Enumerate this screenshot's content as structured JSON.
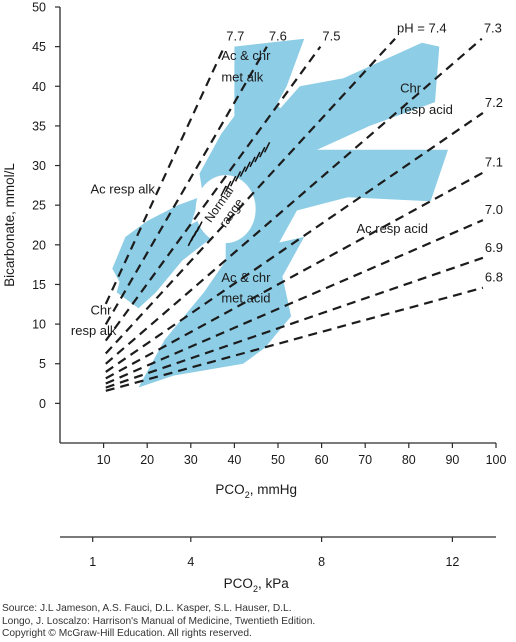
{
  "chart_data": {
    "type": "line",
    "title": "",
    "xlabel": "PCO",
    "xlabel_sub": "2",
    "xlabel_unit": ", mmHg",
    "ylabel": "Bicarbonate, mmol/L",
    "xlim": [
      0,
      100
    ],
    "ylim": [
      -5,
      50
    ],
    "x_ticks": [
      10,
      20,
      30,
      40,
      50,
      60,
      70,
      80,
      90,
      100
    ],
    "y_ticks": [
      0,
      5,
      10,
      15,
      20,
      25,
      30,
      35,
      40,
      45,
      50
    ],
    "grid": false,
    "secondary_axis": {
      "label": "PCO",
      "label_sub": "2",
      "label_unit": ", kPa",
      "ticks": [
        1,
        4,
        8,
        12
      ],
      "kpa_to_mmhg": 7.5
    },
    "isopleths": [
      {
        "label": "pH = 7.4",
        "ph": 7.4
      },
      {
        "label": "7.3",
        "ph": 7.3
      },
      {
        "label": "7.2",
        "ph": 7.2
      },
      {
        "label": "7.1",
        "ph": 7.1
      },
      {
        "label": "7.0",
        "ph": 7.0
      },
      {
        "label": "6.9",
        "ph": 6.9
      },
      {
        "label": "6.8",
        "ph": 6.8
      },
      {
        "label": "7.5",
        "ph": 7.5
      },
      {
        "label": "7.6",
        "ph": 7.6
      },
      {
        "label": "7.7",
        "ph": 7.7
      }
    ],
    "regions": [
      {
        "name": "Ac & chr met alk",
        "polygon": [
          [
            40,
            45
          ],
          [
            56,
            46
          ],
          [
            52,
            40
          ],
          [
            48,
            36
          ],
          [
            42,
            32
          ],
          [
            40,
            36
          ]
        ]
      },
      {
        "name": "Chr resp acid",
        "polygon": [
          [
            47,
            35
          ],
          [
            55,
            40
          ],
          [
            65,
            41
          ],
          [
            83,
            45.5
          ],
          [
            87,
            45
          ],
          [
            86,
            38
          ],
          [
            71,
            35
          ],
          [
            55,
            31
          ],
          [
            47,
            30
          ]
        ]
      },
      {
        "name": "Ac resp acid",
        "polygon": [
          [
            52,
            32
          ],
          [
            89,
            32
          ],
          [
            85,
            25.5
          ],
          [
            66,
            26
          ],
          [
            52,
            24
          ]
        ]
      },
      {
        "name": "Normal range",
        "polygon": [
          [
            32,
            29
          ],
          [
            37,
            34
          ],
          [
            45,
            40
          ],
          [
            53,
            36
          ],
          [
            57,
            33
          ],
          [
            55,
            25
          ],
          [
            50,
            20
          ],
          [
            45,
            20
          ],
          [
            37,
            22
          ],
          [
            34,
            22
          ]
        ]
      },
      {
        "name": "Ac resp alk",
        "polygon": [
          [
            35,
            24
          ],
          [
            39,
            27.5
          ],
          [
            38,
            22
          ],
          [
            35,
            21
          ],
          [
            28,
            18
          ],
          [
            22,
            14
          ],
          [
            18,
            12
          ],
          [
            13,
            14
          ],
          [
            14,
            16
          ],
          [
            21,
            19
          ],
          [
            28,
            22
          ]
        ]
      },
      {
        "name": "Chr resp alk",
        "polygon": [
          [
            28,
            19
          ],
          [
            22,
            17
          ],
          [
            14,
            15
          ],
          [
            12,
            17
          ],
          [
            15,
            21
          ],
          [
            20,
            23
          ],
          [
            27,
            25
          ],
          [
            32,
            26
          ]
        ]
      },
      {
        "name": "Ac & chr met acid",
        "polygon": [
          [
            38,
            22
          ],
          [
            48,
            20
          ],
          [
            56,
            21
          ],
          [
            51,
            16
          ],
          [
            53,
            11
          ],
          [
            47,
            7
          ],
          [
            42,
            5
          ],
          [
            26,
            3.5
          ],
          [
            18,
            2
          ],
          [
            24,
            8
          ],
          [
            33,
            14
          ],
          [
            38,
            18
          ]
        ]
      }
    ],
    "annotations": [
      {
        "text": "Ac & chr",
        "x": 37,
        "y": 43.3
      },
      {
        "text": "met alk",
        "x": 37,
        "y": 40.6
      },
      {
        "text": "Chr",
        "x": 78,
        "y": 39.2
      },
      {
        "text": "resp acid",
        "x": 78,
        "y": 36.5
      },
      {
        "text": "Ac resp alk",
        "x": 7,
        "y": 26.5
      },
      {
        "text": "Ac resp acid",
        "x": 68,
        "y": 21.5
      },
      {
        "text": "Chr",
        "x": 7,
        "y": 11.2
      },
      {
        "text": "resp alk",
        "x": 2.5,
        "y": 8.6
      },
      {
        "text": "Ac & chr",
        "x": 37,
        "y": 15.3
      },
      {
        "text": "met acid",
        "x": 37,
        "y": 12.7
      }
    ],
    "normal_range_label": [
      "Normal",
      "range"
    ]
  },
  "source": {
    "line1": "Source: J.L Jameson, A.S. Fauci, D.L. Kasper, S.L. Hauser, D.L.",
    "line2": "Longo, J. Loscalzo: Harrison's Manual of Medicine, Twentieth Edition.",
    "line3": "Copyright © McGraw-Hill Education. All rights reserved."
  },
  "colors": {
    "region": "#8dcde6",
    "axis": "#2b2b2b",
    "isopleth": "#1c1c1c"
  }
}
